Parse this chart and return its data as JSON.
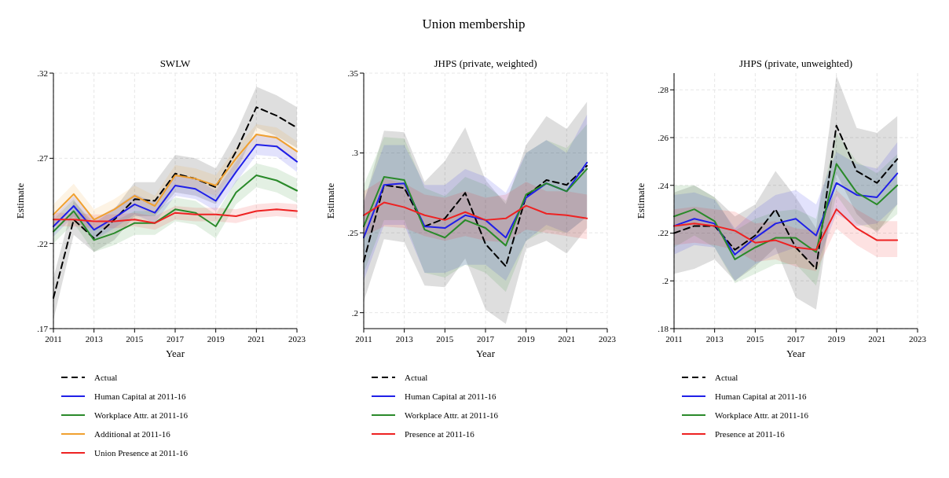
{
  "chart_data": [
    {
      "type": "line",
      "title": "SWLW",
      "annotations": [
        "Union membership"
      ],
      "xlabel": "Year",
      "ylabel": "Estimate",
      "x": [
        2011,
        2012,
        2013,
        2014,
        2015,
        2016,
        2017,
        2018,
        2019,
        2020,
        2021,
        2022,
        2023
      ],
      "xlim": [
        2011,
        2023
      ],
      "xticks": [
        2011,
        2013,
        2015,
        2017,
        2019,
        2021,
        2023
      ],
      "ylim": [
        0.17,
        0.32
      ],
      "yticks": [
        {
          "value": 0.17,
          "label": ".17"
        },
        {
          "value": 0.22,
          "label": ".22"
        },
        {
          "value": 0.27,
          "label": ".27"
        },
        {
          "value": 0.32,
          "label": ".32"
        }
      ],
      "grid": true,
      "legend": "bottom",
      "series": [
        {
          "name": "Actual",
          "color": "#000000",
          "line_style": "dashed",
          "values": [
            0.188,
            0.234,
            0.223,
            0.234,
            0.246,
            0.245,
            0.261,
            0.258,
            0.253,
            0.274,
            0.3,
            0.295,
            0.288
          ],
          "lower": [
            0.175,
            0.225,
            0.215,
            0.222,
            0.236,
            0.236,
            0.25,
            0.248,
            0.243,
            0.262,
            0.288,
            0.283,
            0.276
          ],
          "upper": [
            0.2,
            0.245,
            0.232,
            0.24,
            0.256,
            0.256,
            0.272,
            0.27,
            0.264,
            0.285,
            0.312,
            0.307,
            0.3
          ]
        },
        {
          "name": "Human Capital at 2011-16",
          "color": "#2020e8",
          "line_style": "solid",
          "values": [
            0.23,
            0.242,
            0.228,
            0.235,
            0.243,
            0.238,
            0.254,
            0.252,
            0.245,
            0.262,
            0.278,
            0.277,
            0.268
          ],
          "lower": [
            0.224,
            0.236,
            0.222,
            0.229,
            0.237,
            0.232,
            0.248,
            0.246,
            0.239,
            0.256,
            0.272,
            0.271,
            0.262
          ],
          "upper": [
            0.236,
            0.248,
            0.234,
            0.241,
            0.249,
            0.244,
            0.26,
            0.258,
            0.251,
            0.268,
            0.284,
            0.283,
            0.274
          ]
        },
        {
          "name": "Workplace Attr. at 2011-16",
          "color": "#2a8a2a",
          "line_style": "solid",
          "values": [
            0.227,
            0.239,
            0.222,
            0.226,
            0.232,
            0.232,
            0.24,
            0.238,
            0.23,
            0.25,
            0.26,
            0.257,
            0.251
          ],
          "lower": [
            0.22,
            0.232,
            0.215,
            0.219,
            0.225,
            0.225,
            0.233,
            0.231,
            0.223,
            0.243,
            0.253,
            0.25,
            0.244
          ],
          "upper": [
            0.234,
            0.246,
            0.229,
            0.233,
            0.239,
            0.239,
            0.247,
            0.245,
            0.237,
            0.257,
            0.267,
            0.264,
            0.258
          ]
        },
        {
          "name": "Additional at 2011-16",
          "color": "#f0a030",
          "line_style": "solid",
          "values": [
            0.237,
            0.249,
            0.234,
            0.24,
            0.248,
            0.242,
            0.26,
            0.258,
            0.254,
            0.27,
            0.284,
            0.282,
            0.274
          ],
          "lower": [
            0.231,
            0.243,
            0.228,
            0.234,
            0.242,
            0.236,
            0.254,
            0.252,
            0.248,
            0.264,
            0.278,
            0.276,
            0.268
          ],
          "upper": [
            0.243,
            0.255,
            0.24,
            0.246,
            0.254,
            0.248,
            0.266,
            0.264,
            0.26,
            0.276,
            0.29,
            0.288,
            0.28
          ]
        },
        {
          "name": "Union Presence at 2011-16",
          "color": "#ee2222",
          "line_style": "solid",
          "values": [
            0.234,
            0.234,
            0.233,
            0.233,
            0.234,
            0.232,
            0.238,
            0.237,
            0.237,
            0.236,
            0.239,
            0.24,
            0.239
          ],
          "lower": [
            0.23,
            0.23,
            0.229,
            0.229,
            0.23,
            0.228,
            0.234,
            0.233,
            0.233,
            0.232,
            0.235,
            0.236,
            0.235
          ],
          "upper": [
            0.238,
            0.238,
            0.237,
            0.237,
            0.238,
            0.236,
            0.242,
            0.241,
            0.241,
            0.24,
            0.243,
            0.244,
            0.243
          ]
        }
      ]
    },
    {
      "type": "line",
      "title": "JHPS (private, weighted)",
      "xlabel": "Year",
      "ylabel": "Estimate",
      "x": [
        2011,
        2012,
        2013,
        2014,
        2015,
        2016,
        2017,
        2018,
        2019,
        2020,
        2021,
        2022
      ],
      "xlim": [
        2011,
        2023
      ],
      "xticks": [
        2011,
        2013,
        2015,
        2017,
        2019,
        2021,
        2023
      ],
      "ylim": [
        0.19,
        0.35
      ],
      "yticks": [
        {
          "value": 0.2,
          "label": ".2"
        },
        {
          "value": 0.25,
          "label": ".25"
        },
        {
          "value": 0.3,
          "label": ".3"
        },
        {
          "value": 0.35,
          "label": ".35"
        }
      ],
      "grid": true,
      "legend": "bottom",
      "series": [
        {
          "name": "Actual",
          "color": "#000000",
          "line_style": "dashed",
          "values": [
            0.232,
            0.28,
            0.278,
            0.254,
            0.259,
            0.275,
            0.243,
            0.229,
            0.273,
            0.283,
            0.28,
            0.292
          ],
          "lower": [
            0.207,
            0.246,
            0.244,
            0.217,
            0.216,
            0.234,
            0.202,
            0.193,
            0.24,
            0.245,
            0.237,
            0.253
          ],
          "upper": [
            0.268,
            0.314,
            0.313,
            0.282,
            0.295,
            0.316,
            0.283,
            0.268,
            0.305,
            0.323,
            0.315,
            0.332
          ]
        },
        {
          "name": "Human Capital at 2011-16",
          "color": "#2020e8",
          "line_style": "solid",
          "values": [
            0.247,
            0.28,
            0.281,
            0.254,
            0.253,
            0.261,
            0.258,
            0.247,
            0.272,
            0.281,
            0.276,
            0.294
          ],
          "lower": [
            0.22,
            0.255,
            0.255,
            0.225,
            0.225,
            0.23,
            0.23,
            0.22,
            0.245,
            0.255,
            0.25,
            0.26
          ],
          "upper": [
            0.27,
            0.305,
            0.305,
            0.28,
            0.28,
            0.29,
            0.285,
            0.275,
            0.3,
            0.308,
            0.3,
            0.324
          ]
        },
        {
          "name": "Workplace Attr. at 2011-16",
          "color": "#2a8a2a",
          "line_style": "solid",
          "values": [
            0.254,
            0.285,
            0.283,
            0.252,
            0.247,
            0.258,
            0.253,
            0.242,
            0.274,
            0.281,
            0.276,
            0.29
          ],
          "lower": [
            0.225,
            0.258,
            0.258,
            0.225,
            0.222,
            0.23,
            0.225,
            0.213,
            0.245,
            0.252,
            0.25,
            0.26
          ],
          "upper": [
            0.28,
            0.31,
            0.309,
            0.278,
            0.273,
            0.285,
            0.28,
            0.27,
            0.3,
            0.308,
            0.303,
            0.318
          ]
        },
        {
          "name": "Presence at 2011-16",
          "color": "#ee2222",
          "line_style": "solid",
          "values": [
            0.261,
            0.269,
            0.266,
            0.261,
            0.258,
            0.263,
            0.258,
            0.259,
            0.267,
            0.262,
            0.261,
            0.259
          ],
          "lower": [
            0.248,
            0.254,
            0.253,
            0.248,
            0.245,
            0.248,
            0.245,
            0.244,
            0.252,
            0.25,
            0.248,
            0.246
          ],
          "upper": [
            0.276,
            0.284,
            0.281,
            0.274,
            0.272,
            0.276,
            0.272,
            0.274,
            0.282,
            0.276,
            0.276,
            0.274
          ]
        }
      ]
    },
    {
      "type": "line",
      "title": "JHPS (private, unweighted)",
      "xlabel": "Year",
      "ylabel": "Estimate",
      "x": [
        2011,
        2012,
        2013,
        2014,
        2015,
        2016,
        2017,
        2018,
        2019,
        2020,
        2021,
        2022
      ],
      "xlim": [
        2011,
        2023
      ],
      "xticks": [
        2011,
        2013,
        2015,
        2017,
        2019,
        2021,
        2023
      ],
      "ylim": [
        0.18,
        0.287
      ],
      "yticks": [
        {
          "value": 0.18,
          "label": ".18"
        },
        {
          "value": 0.2,
          "label": ".2"
        },
        {
          "value": 0.22,
          "label": ".22"
        },
        {
          "value": 0.24,
          "label": ".24"
        },
        {
          "value": 0.26,
          "label": ".26"
        },
        {
          "value": 0.28,
          "label": ".28"
        }
      ],
      "grid": true,
      "legend": "bottom",
      "series": [
        {
          "name": "Actual",
          "color": "#000000",
          "line_style": "dashed",
          "values": [
            0.22,
            0.223,
            0.223,
            0.213,
            0.219,
            0.23,
            0.214,
            0.205,
            0.265,
            0.246,
            0.241,
            0.251
          ],
          "lower": [
            0.203,
            0.205,
            0.209,
            0.2,
            0.206,
            0.214,
            0.193,
            0.188,
            0.245,
            0.228,
            0.22,
            0.232
          ],
          "upper": [
            0.237,
            0.24,
            0.235,
            0.227,
            0.232,
            0.246,
            0.235,
            0.222,
            0.286,
            0.264,
            0.262,
            0.269
          ]
        },
        {
          "name": "Human Capital at 2011-16",
          "color": "#2020e8",
          "line_style": "solid",
          "values": [
            0.223,
            0.226,
            0.224,
            0.211,
            0.218,
            0.224,
            0.226,
            0.219,
            0.241,
            0.236,
            0.235,
            0.245
          ],
          "lower": [
            0.211,
            0.215,
            0.214,
            0.2,
            0.207,
            0.211,
            0.214,
            0.206,
            0.228,
            0.223,
            0.224,
            0.232
          ],
          "upper": [
            0.236,
            0.237,
            0.234,
            0.222,
            0.23,
            0.236,
            0.238,
            0.232,
            0.254,
            0.249,
            0.247,
            0.258
          ]
        },
        {
          "name": "Workplace Attr. at 2011-16",
          "color": "#2a8a2a",
          "line_style": "solid",
          "values": [
            0.227,
            0.23,
            0.225,
            0.209,
            0.214,
            0.218,
            0.218,
            0.212,
            0.249,
            0.237,
            0.232,
            0.24
          ],
          "lower": [
            0.214,
            0.219,
            0.214,
            0.199,
            0.203,
            0.207,
            0.207,
            0.198,
            0.236,
            0.224,
            0.221,
            0.228
          ],
          "upper": [
            0.24,
            0.24,
            0.235,
            0.221,
            0.226,
            0.229,
            0.23,
            0.226,
            0.262,
            0.25,
            0.245,
            0.253
          ]
        },
        {
          "name": "Presence at 2011-16",
          "color": "#ee2222",
          "line_style": "solid",
          "values": [
            0.223,
            0.224,
            0.223,
            0.221,
            0.216,
            0.217,
            0.214,
            0.213,
            0.23,
            0.222,
            0.217,
            0.217
          ],
          "lower": [
            0.215,
            0.216,
            0.215,
            0.213,
            0.208,
            0.209,
            0.206,
            0.204,
            0.222,
            0.215,
            0.21,
            0.21
          ],
          "upper": [
            0.23,
            0.231,
            0.23,
            0.229,
            0.224,
            0.225,
            0.222,
            0.221,
            0.238,
            0.23,
            0.225,
            0.225
          ]
        }
      ]
    }
  ]
}
